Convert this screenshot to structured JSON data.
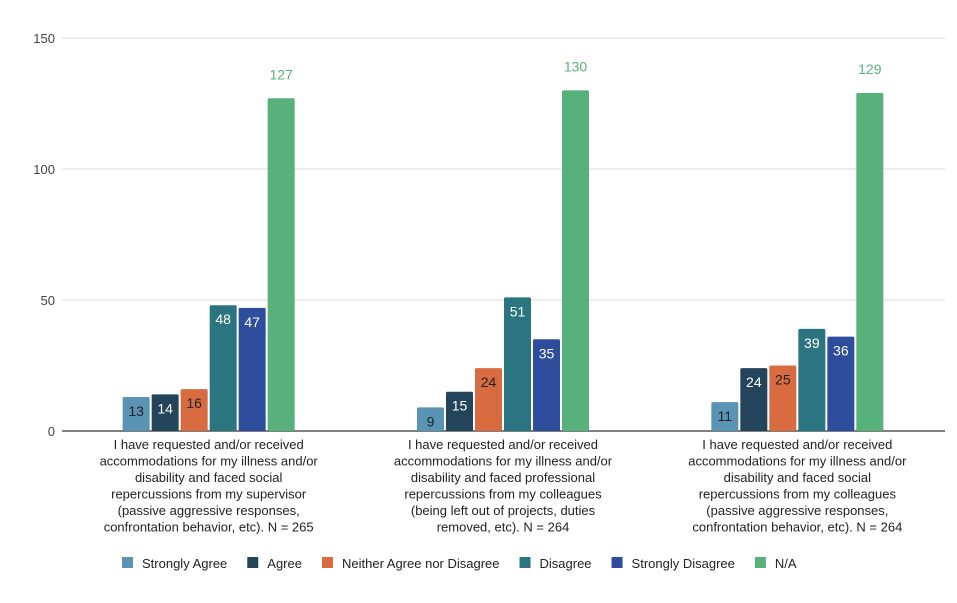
{
  "chart_data": {
    "type": "bar",
    "title": "",
    "xlabel": "",
    "ylabel": "",
    "ylim": [
      0,
      150
    ],
    "yticks": [
      0,
      50,
      100,
      150
    ],
    "grid": true,
    "legend_position": "bottom",
    "categories": [
      [
        "I have requested and/or received",
        "accommodations for my illness and/or",
        "disability and faced social",
        "repercussions from my supervisor",
        "(passive aggressive responses,",
        "confrontation behavior, etc). N = 265"
      ],
      [
        "I have requested and/or received",
        "accommodations for my illness and/or",
        "disability and faced professional",
        "repercussions from my colleagues",
        "(being left out of projects, duties",
        "removed, etc). N = 264"
      ],
      [
        "I have requested and/or received",
        "accommodations for my illness and/or",
        "disability and faced social",
        "repercussions from my colleagues",
        "(passive aggressive responses,",
        "confrontation behavior, etc). N = 264"
      ]
    ],
    "series": [
      {
        "name": "Strongly Agree",
        "color": "#5a94b4",
        "label_color": "#222222",
        "values": [
          13,
          9,
          11
        ]
      },
      {
        "name": "Agree",
        "color": "#24445c",
        "label_color": "#ffffff",
        "values": [
          14,
          15,
          24
        ]
      },
      {
        "name": "Neither Agree nor Disagree",
        "color": "#d86b40",
        "label_color": "#222222",
        "values": [
          16,
          24,
          25
        ]
      },
      {
        "name": "Disagree",
        "color": "#2a7580",
        "label_color": "#ffffff",
        "values": [
          48,
          51,
          39
        ]
      },
      {
        "name": "Strongly Disagree",
        "color": "#2e4d9c",
        "label_color": "#ffffff",
        "values": [
          47,
          35,
          36
        ]
      },
      {
        "name": "N/A",
        "color": "#58b17b",
        "label_color": "#58b17b",
        "label_outside": true,
        "values": [
          127,
          130,
          129
        ]
      }
    ]
  }
}
